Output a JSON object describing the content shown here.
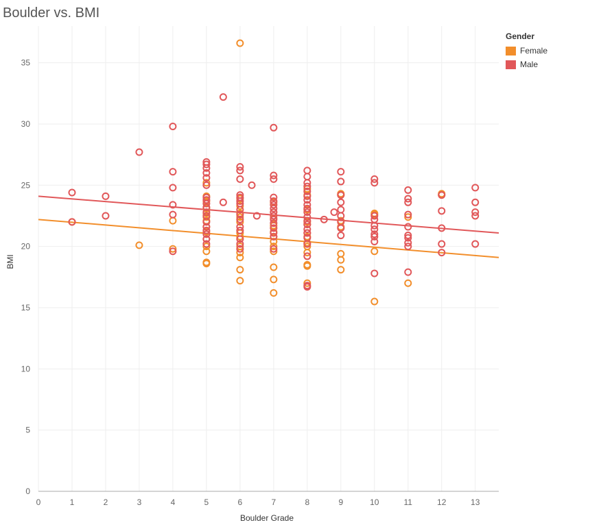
{
  "chart_data": {
    "type": "scatter",
    "title": "Boulder vs. BMI",
    "xlabel": "Boulder Grade",
    "ylabel": "BMI",
    "xlim": [
      0,
      13.7
    ],
    "ylim": [
      0,
      38
    ],
    "x_ticks": [
      "0",
      "1",
      "2",
      "3",
      "4",
      "5",
      "6",
      "7",
      "8",
      "9",
      "10",
      "11",
      "12",
      "13"
    ],
    "y_ticks": [
      "0",
      "5",
      "10",
      "15",
      "20",
      "25",
      "30",
      "35"
    ],
    "grid": true,
    "legend_title": "Gender",
    "legend_position": "top-right",
    "series": [
      {
        "name": "Female",
        "color": "#f28e2b",
        "trend": {
          "start": [
            0,
            22.2
          ],
          "end": [
            13.7,
            19.1
          ]
        },
        "points": [
          [
            1,
            22.0
          ],
          [
            3,
            20.1
          ],
          [
            4,
            19.8
          ],
          [
            4,
            22.1
          ],
          [
            5,
            18.6
          ],
          [
            5,
            18.7
          ],
          [
            5,
            19.6
          ],
          [
            5,
            20.0
          ],
          [
            5,
            20.6
          ],
          [
            5,
            21.2
          ],
          [
            5,
            21.6
          ],
          [
            5,
            22.1
          ],
          [
            5,
            22.4
          ],
          [
            5,
            22.7
          ],
          [
            5,
            23.1
          ],
          [
            5,
            23.7
          ],
          [
            5,
            24.1
          ],
          [
            5,
            25.2
          ],
          [
            6,
            17.2
          ],
          [
            6,
            18.1
          ],
          [
            6,
            19.1
          ],
          [
            6,
            19.5
          ],
          [
            6,
            20.0
          ],
          [
            6,
            20.8
          ],
          [
            6,
            21.1
          ],
          [
            6,
            22.0
          ],
          [
            6,
            22.4
          ],
          [
            6,
            22.7
          ],
          [
            6,
            23.3
          ],
          [
            6,
            23.9
          ],
          [
            6,
            36.6
          ],
          [
            7,
            16.2
          ],
          [
            7,
            17.3
          ],
          [
            7,
            18.3
          ],
          [
            7,
            19.6
          ],
          [
            7,
            20.0
          ],
          [
            7,
            20.4
          ],
          [
            7,
            20.8
          ],
          [
            7,
            21.2
          ],
          [
            7,
            21.7
          ],
          [
            7,
            22.3
          ],
          [
            7,
            22.8
          ],
          [
            7,
            23.6
          ],
          [
            8,
            17.0
          ],
          [
            8,
            18.4
          ],
          [
            8,
            18.5
          ],
          [
            8,
            19.5
          ],
          [
            8,
            20.0
          ],
          [
            8,
            20.3
          ],
          [
            8,
            20.8
          ],
          [
            8,
            21.1
          ],
          [
            8,
            21.8
          ],
          [
            8,
            22.0
          ],
          [
            8,
            23.0
          ],
          [
            8,
            24.2
          ],
          [
            8,
            24.7
          ],
          [
            9,
            18.1
          ],
          [
            9,
            18.9
          ],
          [
            9,
            19.4
          ],
          [
            9,
            21.6
          ],
          [
            9,
            22.1
          ],
          [
            9,
            24.2
          ],
          [
            9,
            24.3
          ],
          [
            10,
            15.5
          ],
          [
            10,
            19.6
          ],
          [
            10,
            22.6
          ],
          [
            10,
            22.7
          ],
          [
            11,
            17.0
          ],
          [
            11,
            22.4
          ],
          [
            12,
            24.2
          ],
          [
            12,
            24.3
          ]
        ]
      },
      {
        "name": "Male",
        "color": "#e15759",
        "trend": {
          "start": [
            0,
            24.1
          ],
          "end": [
            13.7,
            21.1
          ]
        },
        "points": [
          [
            1,
            24.4
          ],
          [
            1,
            22.0
          ],
          [
            2,
            24.1
          ],
          [
            2,
            22.5
          ],
          [
            3,
            27.7
          ],
          [
            4,
            29.8
          ],
          [
            4,
            26.1
          ],
          [
            4,
            24.8
          ],
          [
            4,
            23.4
          ],
          [
            4,
            22.6
          ],
          [
            4,
            19.6
          ],
          [
            5,
            26.9
          ],
          [
            5,
            26.7
          ],
          [
            5,
            26.4
          ],
          [
            5,
            26.0
          ],
          [
            5,
            25.6
          ],
          [
            5,
            25.0
          ],
          [
            5,
            24.0
          ],
          [
            5,
            23.8
          ],
          [
            5,
            23.5
          ],
          [
            5,
            23.2
          ],
          [
            5,
            22.8
          ],
          [
            5,
            22.5
          ],
          [
            5,
            22.0
          ],
          [
            5,
            21.6
          ],
          [
            5,
            21.3
          ],
          [
            5,
            21.0
          ],
          [
            5,
            20.6
          ],
          [
            5,
            20.2
          ],
          [
            5.5,
            32.2
          ],
          [
            5.5,
            23.6
          ],
          [
            6,
            26.5
          ],
          [
            6,
            26.2
          ],
          [
            6,
            25.5
          ],
          [
            6,
            24.2
          ],
          [
            6,
            24.0
          ],
          [
            6,
            23.7
          ],
          [
            6,
            23.5
          ],
          [
            6,
            23.0
          ],
          [
            6,
            22.6
          ],
          [
            6,
            22.2
          ],
          [
            6,
            21.6
          ],
          [
            6,
            21.3
          ],
          [
            6,
            20.6
          ],
          [
            6,
            20.2
          ],
          [
            6,
            19.8
          ],
          [
            6.35,
            25.0
          ],
          [
            6.5,
            22.5
          ],
          [
            7,
            29.7
          ],
          [
            7,
            25.8
          ],
          [
            7,
            25.5
          ],
          [
            7,
            24.0
          ],
          [
            7,
            23.7
          ],
          [
            7,
            23.4
          ],
          [
            7,
            23.1
          ],
          [
            7,
            22.8
          ],
          [
            7,
            22.5
          ],
          [
            7,
            22.2
          ],
          [
            7,
            21.9
          ],
          [
            7,
            21.5
          ],
          [
            7,
            21.1
          ],
          [
            7,
            20.8
          ],
          [
            7,
            19.8
          ],
          [
            8,
            26.2
          ],
          [
            8,
            25.7
          ],
          [
            8,
            25.2
          ],
          [
            8,
            24.9
          ],
          [
            8,
            24.5
          ],
          [
            8,
            24.1
          ],
          [
            8,
            23.8
          ],
          [
            8,
            23.4
          ],
          [
            8,
            23.1
          ],
          [
            8,
            22.8
          ],
          [
            8,
            22.4
          ],
          [
            8,
            22.1
          ],
          [
            8,
            21.8
          ],
          [
            8,
            21.4
          ],
          [
            8,
            21.1
          ],
          [
            8,
            20.7
          ],
          [
            8,
            20.2
          ],
          [
            8,
            19.2
          ],
          [
            8,
            16.8
          ],
          [
            8,
            16.7
          ],
          [
            8.5,
            22.2
          ],
          [
            8.8,
            22.8
          ],
          [
            9,
            26.1
          ],
          [
            9,
            25.3
          ],
          [
            9,
            24.2
          ],
          [
            9,
            23.6
          ],
          [
            9,
            23.0
          ],
          [
            9,
            22.5
          ],
          [
            9,
            22.0
          ],
          [
            9,
            21.5
          ],
          [
            9,
            20.9
          ],
          [
            10,
            25.5
          ],
          [
            10,
            25.2
          ],
          [
            10,
            22.5
          ],
          [
            10,
            22.2
          ],
          [
            10,
            21.7
          ],
          [
            10,
            21.4
          ],
          [
            10,
            21.0
          ],
          [
            10,
            20.8
          ],
          [
            10,
            20.4
          ],
          [
            10,
            17.8
          ],
          [
            11,
            24.6
          ],
          [
            11,
            23.9
          ],
          [
            11,
            23.6
          ],
          [
            11,
            22.6
          ],
          [
            11,
            21.6
          ],
          [
            11,
            20.9
          ],
          [
            11,
            20.7
          ],
          [
            11,
            20.3
          ],
          [
            11,
            20.0
          ],
          [
            11,
            17.9
          ],
          [
            12,
            24.2
          ],
          [
            12,
            22.9
          ],
          [
            12,
            21.5
          ],
          [
            12,
            20.2
          ],
          [
            12,
            19.5
          ],
          [
            13,
            24.8
          ],
          [
            13,
            23.6
          ],
          [
            13,
            22.8
          ],
          [
            13,
            22.5
          ],
          [
            13,
            20.2
          ]
        ]
      }
    ]
  }
}
